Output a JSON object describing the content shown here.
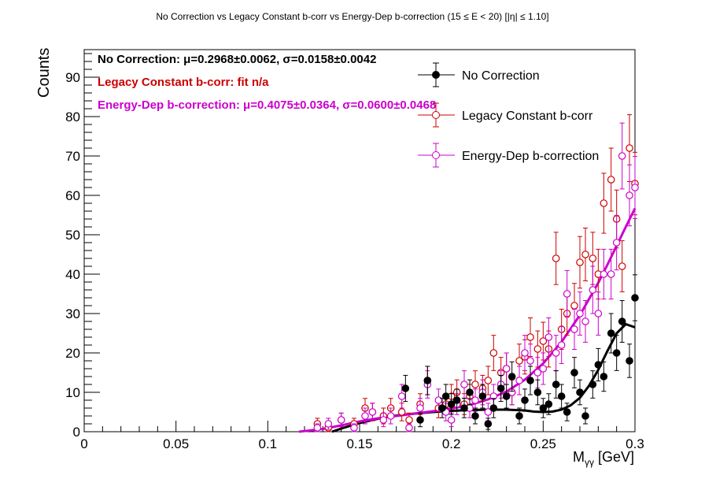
{
  "chart_data": {
    "type": "scatter",
    "title": "No Correction vs Legacy Constant b-corr vs Energy-Dep b-correction   (15 ≤ E < 20)   [|η| ≤ 1.10]",
    "xlabel": "Mγγ [GeV]",
    "xlabel_main": "M",
    "xlabel_sub": "γγ",
    "xlabel_unit": " [GeV]",
    "ylabel": "Counts",
    "xlim": [
      0,
      0.3
    ],
    "ylim": [
      0,
      97
    ],
    "x_ticks": [
      0,
      0.05,
      0.1,
      0.15,
      0.2,
      0.25,
      0.3
    ],
    "x_tick_labels": [
      "0",
      "0.05",
      "0.1",
      "0.15",
      "0.2",
      "0.25",
      "0.3"
    ],
    "y_ticks": [
      0,
      10,
      20,
      30,
      40,
      50,
      60,
      70,
      80,
      90
    ],
    "y_tick_labels": [
      "0",
      "10",
      "20",
      "30",
      "40",
      "50",
      "60",
      "70",
      "80",
      "90"
    ],
    "legend_position": "top-right",
    "annotations": [
      {
        "label": "No Correction:",
        "text": " μ=0.2968±0.0062, σ=0.0158±0.0042",
        "color": "#000000"
      },
      {
        "label": "Legacy Constant b-corr: fit n/a",
        "text": "",
        "color": "#cc0000"
      },
      {
        "label": "Energy-Dep b-correction:",
        "text": " μ=0.4075±0.0364, σ=0.0600±0.0468",
        "color": "#cc00cc"
      }
    ],
    "series": [
      {
        "name": "No Correction",
        "color": "#000000",
        "marker": "filled-circle",
        "x": [
          0.175,
          0.183,
          0.187,
          0.195,
          0.197,
          0.2,
          0.203,
          0.207,
          0.21,
          0.213,
          0.217,
          0.22,
          0.223,
          0.227,
          0.23,
          0.233,
          0.237,
          0.24,
          0.243,
          0.247,
          0.25,
          0.253,
          0.257,
          0.26,
          0.263,
          0.267,
          0.27,
          0.273,
          0.277,
          0.28,
          0.283,
          0.287,
          0.29,
          0.293,
          0.297,
          0.3
        ],
        "y": [
          11,
          3,
          13,
          6,
          9,
          7,
          8,
          6,
          10,
          4,
          9,
          2,
          6,
          11,
          9,
          14,
          4,
          8,
          13,
          10,
          6,
          7,
          12,
          9,
          5,
          15,
          10,
          4,
          12,
          17,
          14,
          25,
          20,
          28,
          18,
          34
        ]
      },
      {
        "name": "Legacy Constant b-corr",
        "color": "#cc0000",
        "marker": "open-circle",
        "x": [
          0.127,
          0.133,
          0.14,
          0.147,
          0.153,
          0.157,
          0.163,
          0.167,
          0.173,
          0.177,
          0.183,
          0.187,
          0.193,
          0.197,
          0.2,
          0.203,
          0.207,
          0.21,
          0.213,
          0.217,
          0.22,
          0.223,
          0.227,
          0.23,
          0.233,
          0.237,
          0.24,
          0.243,
          0.247,
          0.25,
          0.253,
          0.257,
          0.26,
          0.263,
          0.267,
          0.27,
          0.273,
          0.277,
          0.28,
          0.283,
          0.287,
          0.29,
          0.293,
          0.297,
          0.3
        ],
        "y": [
          2,
          1,
          3,
          2,
          6,
          5,
          4,
          6,
          5,
          3,
          7,
          13,
          6,
          7,
          9,
          10,
          7,
          9,
          12,
          11,
          13,
          20,
          15,
          16,
          10,
          18,
          19,
          24,
          21,
          23,
          21,
          44,
          26,
          30,
          32,
          43,
          45,
          44,
          40,
          58,
          64,
          54,
          42,
          72,
          63
        ]
      },
      {
        "name": "Energy-Dep b-correction",
        "color": "#cc00cc",
        "marker": "open-circle",
        "x": [
          0.127,
          0.133,
          0.14,
          0.147,
          0.153,
          0.157,
          0.163,
          0.167,
          0.173,
          0.177,
          0.183,
          0.187,
          0.193,
          0.197,
          0.2,
          0.203,
          0.207,
          0.21,
          0.213,
          0.217,
          0.22,
          0.223,
          0.227,
          0.23,
          0.233,
          0.237,
          0.24,
          0.243,
          0.247,
          0.25,
          0.253,
          0.257,
          0.26,
          0.263,
          0.267,
          0.27,
          0.273,
          0.277,
          0.28,
          0.283,
          0.287,
          0.29,
          0.293,
          0.297,
          0.3
        ],
        "y": [
          1,
          2,
          3,
          1,
          4,
          5,
          3,
          4,
          9,
          1,
          6,
          12,
          8,
          5,
          3,
          7,
          12,
          6,
          8,
          10,
          5,
          9,
          12,
          16,
          10,
          13,
          20,
          18,
          15,
          16,
          24,
          20,
          22,
          35,
          26,
          30,
          28,
          36,
          30,
          40,
          40,
          48,
          70,
          60,
          62
        ]
      }
    ],
    "fits": [
      {
        "name": "No Correction fit",
        "color": "#000000",
        "x": [
          0.135,
          0.14,
          0.15,
          0.16,
          0.17,
          0.18,
          0.19,
          0.2,
          0.21,
          0.22,
          0.23,
          0.24,
          0.245,
          0.25,
          0.255,
          0.26,
          0.265,
          0.27,
          0.275,
          0.28,
          0.285,
          0.29,
          0.295,
          0.3
        ],
        "y": [
          0,
          0.8,
          2.2,
          3.3,
          4.1,
          4.6,
          5.0,
          5.3,
          5.5,
          5.6,
          5.6,
          5.4,
          5.1,
          5.0,
          5.1,
          5.6,
          6.7,
          8.6,
          11.7,
          15.7,
          20.5,
          25.0,
          27.3,
          26.5
        ]
      },
      {
        "name": "Energy-Dep b-correction fit",
        "color": "#cc00cc",
        "x": [
          0.117,
          0.13,
          0.14,
          0.15,
          0.16,
          0.17,
          0.18,
          0.19,
          0.2,
          0.21,
          0.22,
          0.23,
          0.24,
          0.25,
          0.26,
          0.27,
          0.28,
          0.285,
          0.29,
          0.295,
          0.3
        ],
        "y": [
          0,
          0.7,
          1.6,
          2.6,
          3.4,
          4.0,
          4.6,
          5.2,
          5.9,
          6.8,
          8.2,
          10.2,
          13.2,
          17.3,
          22.8,
          29.6,
          37.8,
          42.4,
          47.2,
          52.0,
          56.7
        ]
      }
    ]
  }
}
